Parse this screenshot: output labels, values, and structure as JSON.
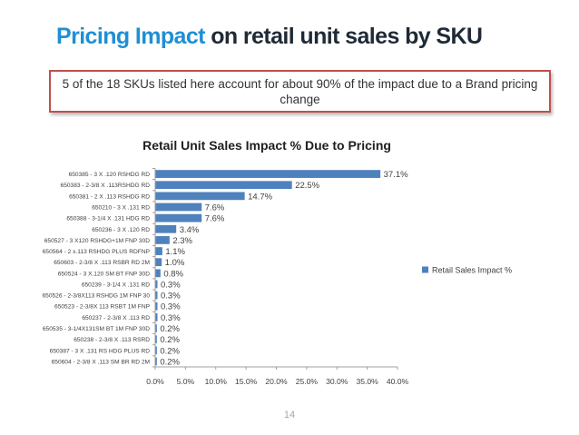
{
  "slide": {
    "title_accent": "Pricing Impact",
    "title_rest": "on retail unit sales by SKU",
    "callout": "5 of the 18 SKUs listed here account for about 90% of the impact due to a Brand pricing change",
    "page_number": "14"
  },
  "colors": {
    "accent": "#1f8fd3",
    "bar": "#4f81bd",
    "callout_border": "#c0504d"
  },
  "chart_data": {
    "type": "bar",
    "orientation": "horizontal",
    "title": "Retail Unit Sales Impact % Due to Pricing",
    "categories": [
      "650385 - 3 X .120 RSHDG RD",
      "650383 - 2-3/8 X .113RSHDG RD",
      "650381 - 2 X .113 RSHDG RD",
      "650210 - 3 X .131 RD",
      "650388 - 3-1/4 X .131 HDG RD",
      "650236 - 3 X .120 RD",
      "650527 - 3 X120 RSHDG+1M FNP 30D",
      "650564 - 2 x.113 RSHDG PLUS RDFNP",
      "650603 - 2-3/8 X .113 RSBR RD 2M",
      "650524 - 3 X.120 SM BT FNP 30D",
      "650239 - 3-1/4 X .131 RD",
      "650526 - 2-3/8X113 RSHDG 1M FNP 30",
      "650523 - 2-3/8X 113 RSBT 1M FNP",
      "650237 - 2-3/8 X .113 RD",
      "650535 - 3-1/4X131SM BT 1M FNP 30D",
      "650238 - 2-3/8 X .113 RSRD",
      "650387 - 3 X .131 RS HDG PLUS RD",
      "650604 - 2-3/8 X .113 SM BR RD 2M"
    ],
    "series": [
      {
        "name": "Retail Sales Impact %",
        "values": [
          37.1,
          22.5,
          14.7,
          7.6,
          7.6,
          3.4,
          2.3,
          1.1,
          1.0,
          0.8,
          0.3,
          0.3,
          0.3,
          0.3,
          0.2,
          0.2,
          0.2,
          0.2
        ],
        "labels": [
          "37.1%",
          "22.5%",
          "14.7%",
          "7.6%",
          "7.6%",
          "3.4%",
          "2.3%",
          "1.1%",
          "1.0%",
          "0.8%",
          "0.3%",
          "0.3%",
          "0.3%",
          "0.3%",
          "0.2%",
          "0.2%",
          "0.2%",
          "0.2%"
        ]
      }
    ],
    "xlim": [
      0,
      40
    ],
    "x_ticks": [
      "0.0%",
      "5.0%",
      "10.0%",
      "15.0%",
      "20.0%",
      "25.0%",
      "30.0%",
      "35.0%",
      "40.0%"
    ],
    "legend_position": "right",
    "grid": false
  }
}
